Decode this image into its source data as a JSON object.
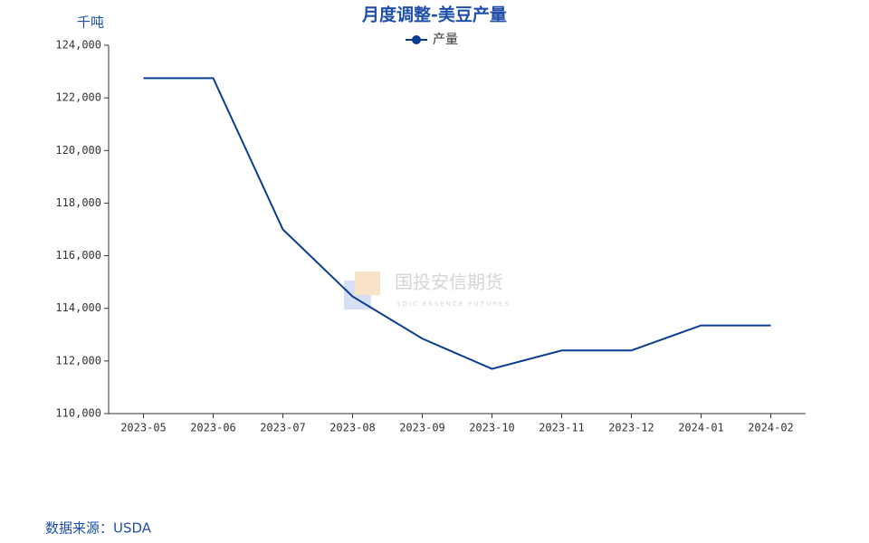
{
  "chart_data": {
    "type": "line",
    "title": "月度调整-美豆产量",
    "y_unit": "千吨",
    "source": "数据来源：USDA",
    "watermark": {
      "name": "国投安信期货",
      "english": "SDIC ESSENCE FUTURES"
    },
    "categories": [
      "2023-05",
      "2023-06",
      "2023-07",
      "2023-08",
      "2023-09",
      "2023-10",
      "2023-11",
      "2023-12",
      "2024-01",
      "2024-02"
    ],
    "series": [
      {
        "name": "产量",
        "color": "#0a3d91",
        "values": [
          122750,
          122750,
          117000,
          114450,
          112850,
          111700,
          112400,
          112400,
          113350,
          113350
        ]
      }
    ],
    "ylim": [
      110000,
      124000
    ],
    "yticks": [
      {
        "value": 110000,
        "label": "110,000"
      },
      {
        "value": 112000,
        "label": "112,000"
      },
      {
        "value": 114000,
        "label": "114,000"
      },
      {
        "value": 116000,
        "label": "116,000"
      },
      {
        "value": 118000,
        "label": "118,000"
      },
      {
        "value": 120000,
        "label": "120,000"
      },
      {
        "value": 122000,
        "label": "122,000"
      },
      {
        "value": 124000,
        "label": "124,000"
      }
    ],
    "legend": "top",
    "grid": false
  }
}
